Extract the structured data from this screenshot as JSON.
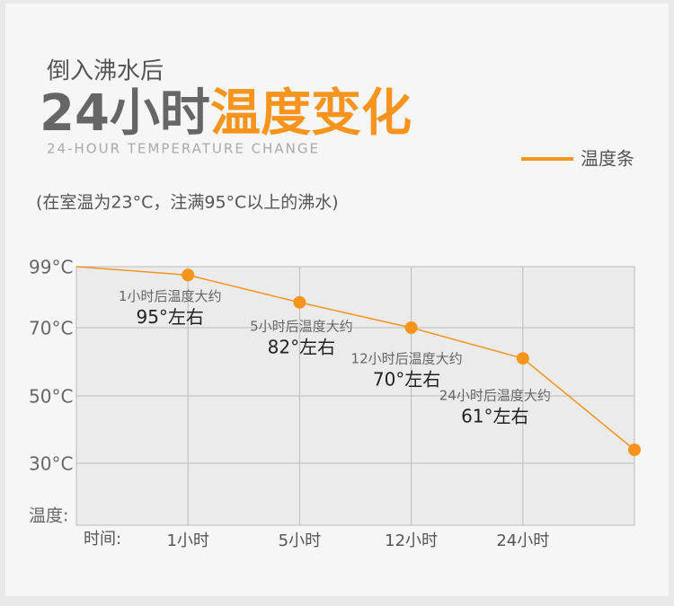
{
  "chart_data": {
    "type": "line",
    "subtitle": "倒入沸水后",
    "title": {
      "main": "24小时",
      "highlight": "温度变化"
    },
    "title_en": "24-HOUR TEMPERATURE CHANGE",
    "note": "(在室温为23°C，注满95°C以上的沸水)",
    "x_label": "时间:",
    "y_label": "温度:",
    "categories": [
      null,
      "1小时",
      "5小时",
      "12小时",
      "24小时",
      null
    ],
    "series": [
      {
        "name": "温度条",
        "color": "#f7941d",
        "values": [
          99,
          95,
          82,
          70,
          61,
          34
        ]
      }
    ],
    "point_notes": [
      null,
      "1小时后温度大约",
      "5小时后温度大约",
      "12小时后温度大约",
      "24小时后温度大约",
      null
    ],
    "value_labels": [
      null,
      "95°左右",
      "82°左右",
      "70°左右",
      "61°左右",
      null
    ],
    "ylim": [
      12,
      99
    ],
    "yticks": [
      {
        "value": 99,
        "label": "99°C"
      },
      {
        "value": 70,
        "label": "70°C"
      },
      {
        "value": 50,
        "label": "50°C"
      },
      {
        "value": 30,
        "label": "30°C"
      }
    ],
    "grid": true,
    "legend": "top-right"
  }
}
